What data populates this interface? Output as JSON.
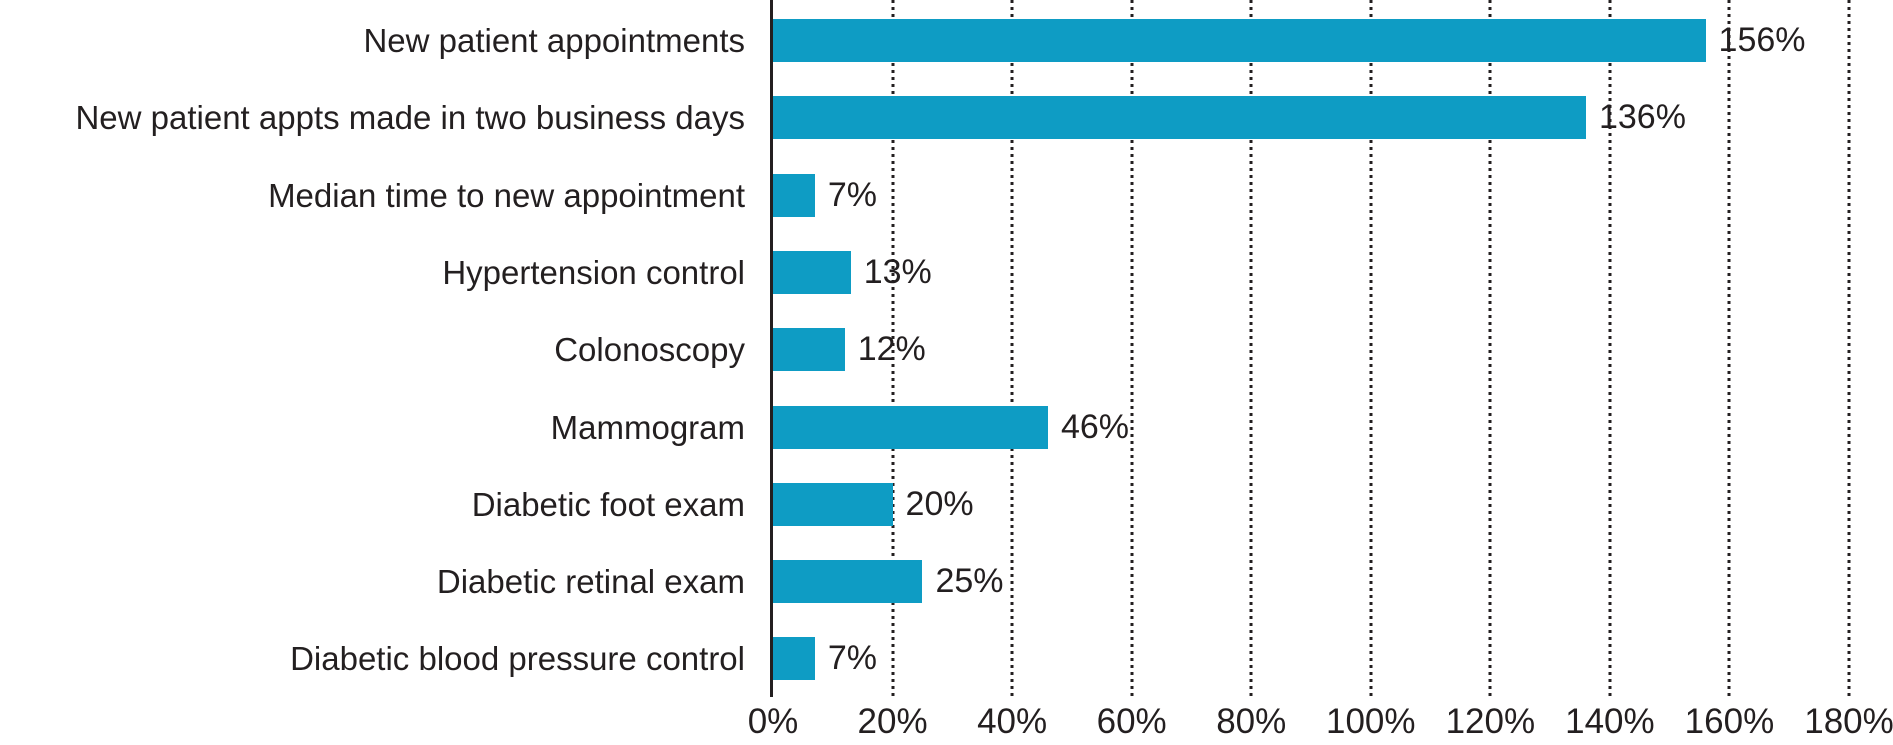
{
  "chart_data": {
    "type": "bar",
    "orientation": "horizontal",
    "title": "",
    "xlabel": "",
    "ylabel": "",
    "categories": [
      "New patient appointments",
      "New patient appts made in two business days",
      "Median time to new appointment",
      "Hypertension control",
      "Colonoscopy",
      "Mammogram",
      "Diabetic foot exam",
      "Diabetic retinal exam",
      "Diabetic blood pressure control"
    ],
    "values": [
      156,
      136,
      7,
      13,
      12,
      46,
      20,
      25,
      7
    ],
    "value_labels": [
      "156%",
      "136%",
      "7%",
      "13%",
      "12%",
      "46%",
      "20%",
      "25%",
      "7%"
    ],
    "x_ticks": [
      "0%",
      "20%",
      "40%",
      "60%",
      "80%",
      "100%",
      "120%",
      "140%",
      "160%",
      "180%"
    ],
    "xlim": [
      0,
      180
    ],
    "grid": "dotted-vertical",
    "legend": "none",
    "bar_color": "#0e9cc4",
    "axis_color": "#231f20",
    "text_color": "#231f20"
  }
}
